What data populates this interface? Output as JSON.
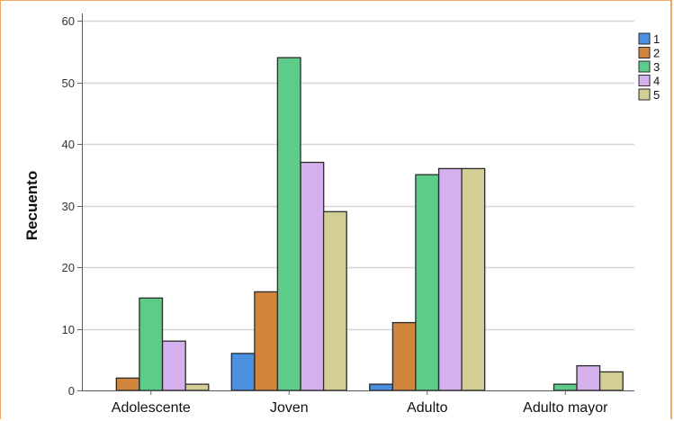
{
  "chart_data": {
    "type": "bar",
    "categories": [
      "Adolescente",
      "Joven",
      "Adulto",
      "Adulto mayor"
    ],
    "series": [
      {
        "name": "1",
        "color": "#4a8fe0",
        "values": [
          0,
          6,
          1,
          0
        ]
      },
      {
        "name": "2",
        "color": "#d0843c",
        "values": [
          2,
          16,
          11,
          0
        ]
      },
      {
        "name": "3",
        "color": "#5ccc88",
        "values": [
          15,
          54,
          35,
          1
        ]
      },
      {
        "name": "4",
        "color": "#d4b0ec",
        "values": [
          8,
          37,
          36,
          4
        ]
      },
      {
        "name": "5",
        "color": "#d2ce96",
        "values": [
          1,
          29,
          36,
          3
        ]
      }
    ],
    "ylabel": "Recuento",
    "xlabel": "",
    "ylim": [
      0,
      60
    ],
    "yticks": [
      0,
      10,
      20,
      30,
      40,
      50,
      60
    ],
    "grid": true,
    "legend_position": "top-right"
  }
}
